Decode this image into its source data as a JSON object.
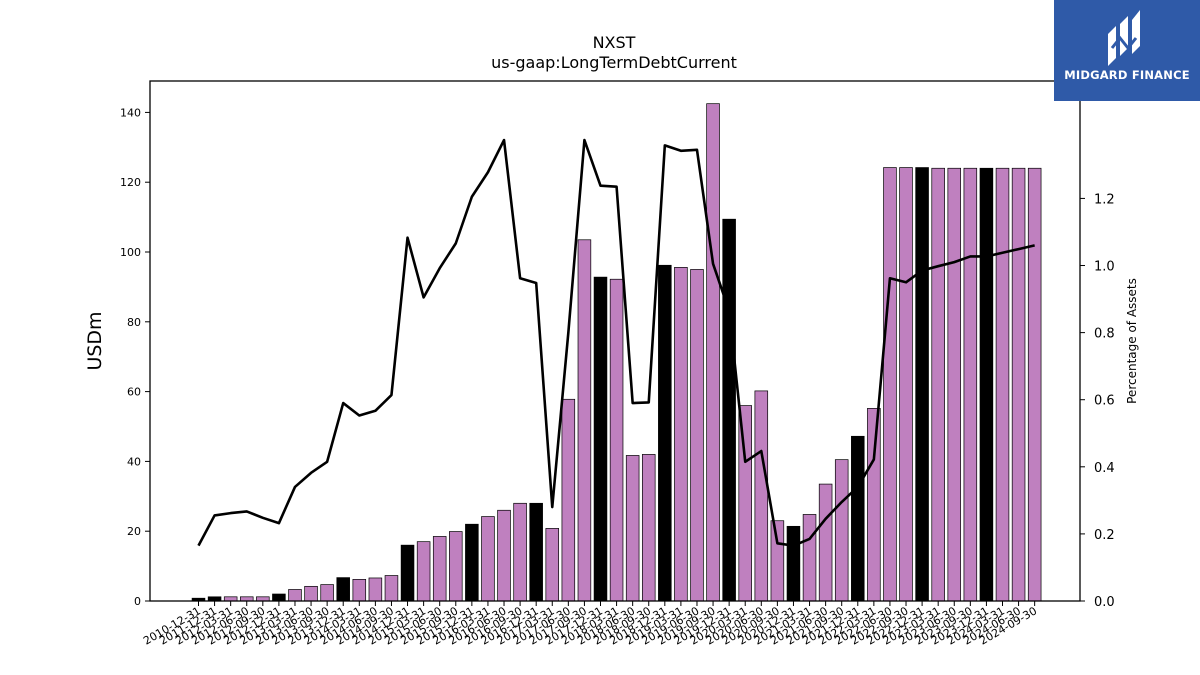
{
  "brand": {
    "name": "MIDGARD FINANCE",
    "bg_color": "#2f5aa8",
    "icon": "midgard-logo-icon"
  },
  "chart_data": {
    "type": "bar",
    "title": "NXST",
    "subtitle": "us-gaap:LongTermDebtCurrent",
    "ylabel": "USDm",
    "y2label": "Percentage of Assets",
    "ylim": [
      0,
      149
    ],
    "y2lim": [
      0,
      1.55
    ],
    "yticks": [
      0,
      20,
      40,
      60,
      80,
      100,
      120,
      140
    ],
    "y2ticks": [
      0.0,
      0.2,
      0.4,
      0.6,
      0.8,
      1.0,
      1.2
    ],
    "colors": {
      "bar_q": "#bf80bf",
      "bar_fy": "#000000",
      "line": "#000000"
    },
    "categories": [
      "2010-12-31",
      "2011-12-31",
      "2012-03-31",
      "2012-06-30",
      "2012-09-30",
      "2012-12-31",
      "2013-03-31",
      "2013-06-30",
      "2013-09-30",
      "2013-12-31",
      "2014-03-31",
      "2014-06-30",
      "2014-09-30",
      "2014-12-31",
      "2015-03-31",
      "2015-06-30",
      "2015-09-30",
      "2015-12-31",
      "2016-03-31",
      "2016-06-30",
      "2016-09-30",
      "2016-12-31",
      "2017-03-31",
      "2017-06-30",
      "2017-09-30",
      "2017-12-31",
      "2018-03-31",
      "2018-06-30",
      "2018-09-30",
      "2018-12-31",
      "2019-03-31",
      "2019-06-30",
      "2019-09-30",
      "2019-12-31",
      "2020-03-31",
      "2020-06-30",
      "2020-09-30",
      "2020-12-31",
      "2021-03-31",
      "2021-06-30",
      "2021-09-30",
      "2021-12-31",
      "2022-03-31",
      "2022-06-30",
      "2022-09-30",
      "2022-12-31",
      "2023-03-31",
      "2023-06-30",
      "2023-09-30",
      "2023-12-31",
      "2024-03-31",
      "2024-06-30",
      "2024-09-30"
    ],
    "fiscal_year_end": [
      true,
      true,
      false,
      false,
      false,
      true,
      false,
      false,
      false,
      true,
      false,
      false,
      false,
      true,
      false,
      false,
      false,
      true,
      false,
      false,
      false,
      true,
      false,
      false,
      false,
      true,
      false,
      false,
      false,
      true,
      false,
      false,
      false,
      true,
      false,
      false,
      false,
      true,
      false,
      false,
      false,
      true,
      false,
      false,
      false,
      true,
      false,
      false,
      false,
      true,
      false,
      false,
      false
    ],
    "series": [
      {
        "name": "USDm",
        "kind": "bar",
        "values": [
          0.8,
          1.2,
          1.2,
          1.2,
          1.2,
          2.0,
          3.3,
          4.2,
          4.7,
          6.7,
          6.2,
          6.6,
          7.3,
          16.0,
          17.0,
          18.5,
          19.9,
          22.0,
          24.2,
          26.0,
          28.0,
          28.0,
          20.8,
          57.8,
          103.5,
          92.8,
          92.2,
          41.7,
          42.0,
          96.2,
          95.6,
          95.0,
          142.5,
          109.4,
          56.0,
          60.2,
          23.0,
          21.4,
          24.8,
          33.5,
          40.5,
          47.2,
          55.2,
          124.2,
          124.2,
          124.2,
          124.0,
          124.0,
          124.0,
          124.0,
          124.0,
          124.0,
          124.0
        ]
      },
      {
        "name": "Percentage of Assets",
        "kind": "line",
        "values": [
          0.165,
          0.255,
          0.262,
          0.267,
          0.248,
          0.232,
          0.34,
          0.382,
          0.415,
          0.59,
          0.553,
          0.567,
          0.614,
          1.083,
          0.905,
          0.992,
          1.066,
          1.205,
          1.278,
          1.374,
          0.962,
          0.948,
          0.28,
          0.8,
          1.374,
          1.238,
          1.235,
          0.59,
          0.592,
          1.358,
          1.342,
          1.345,
          1.005,
          0.865,
          0.415,
          0.447,
          0.172,
          0.165,
          0.185,
          0.245,
          0.295,
          0.34,
          0.422,
          0.962,
          0.95,
          0.985,
          0.998,
          1.01,
          1.027,
          1.027,
          1.038,
          1.049,
          1.06
        ]
      }
    ]
  }
}
